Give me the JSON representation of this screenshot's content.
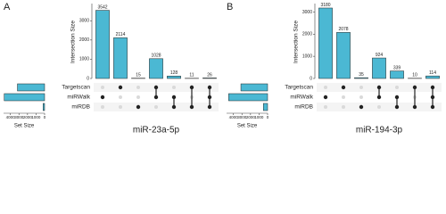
{
  "chart_data": [
    {
      "type": "upset",
      "panel_label": "A",
      "title": "miR-23a-5p",
      "ylabel": "Intersection Size",
      "set_size_label": "Set Size",
      "sets": [
        "Targetscan",
        "miRWalk",
        "miRDB"
      ],
      "set_sizes": [
        3179,
        4724,
        180
      ],
      "set_size_xlim": [
        4800,
        0
      ],
      "set_size_xticks": [
        4000,
        3000,
        2000,
        1000,
        0
      ],
      "values": [
        3542,
        2114,
        15,
        1028,
        128,
        11,
        26
      ],
      "intersections": [
        [
          1
        ],
        [
          0
        ],
        [
          2
        ],
        [
          0,
          1
        ],
        [
          1,
          2
        ],
        [
          0,
          2
        ],
        [
          0,
          1,
          2
        ]
      ],
      "ylim": [
        0,
        3800
      ],
      "yticks": [
        0,
        1000,
        2000,
        3000
      ],
      "color": "#4bb8d3",
      "dot_color": "#222222",
      "empty_dot_color": "#d9d9d9"
    },
    {
      "type": "upset",
      "panel_label": "B",
      "title": "miR-194-3p",
      "ylabel": "Intersection Size",
      "set_size_label": "Set Size",
      "sets": [
        "Targetscan",
        "miRWalk",
        "miRDB"
      ],
      "set_sizes": [
        3126,
        4557,
        498
      ],
      "set_size_xlim": [
        4800,
        0
      ],
      "set_size_xticks": [
        4000,
        3000,
        2000,
        1000,
        0
      ],
      "values": [
        3180,
        2078,
        35,
        924,
        339,
        10,
        114
      ],
      "intersections": [
        [
          1
        ],
        [
          0
        ],
        [
          2
        ],
        [
          0,
          1
        ],
        [
          1,
          2
        ],
        [
          0,
          2
        ],
        [
          0,
          1,
          2
        ]
      ],
      "ylim": [
        0,
        3300
      ],
      "yticks": [
        0,
        1000,
        2000,
        3000
      ],
      "color": "#4bb8d3",
      "dot_color": "#222222",
      "empty_dot_color": "#d9d9d9"
    }
  ]
}
